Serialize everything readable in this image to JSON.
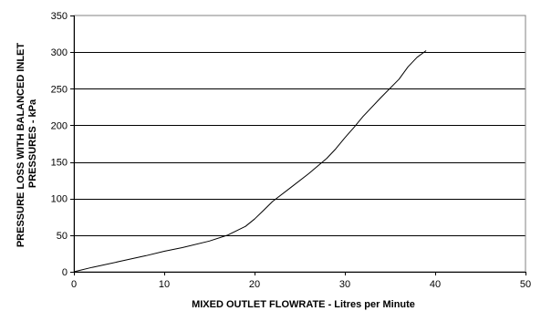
{
  "chart_data": {
    "type": "line",
    "title": "",
    "xlabel": "MIXED OUTLET FLOWRATE - Litres per Minute",
    "ylabel": [
      "PRESSURE LOSS WITH BALANCED INLET",
      "PRESSURES - kPa"
    ],
    "xlim": [
      0,
      50
    ],
    "ylim": [
      0,
      350
    ],
    "xticks": [
      "0",
      "10",
      "20",
      "30",
      "40",
      "50"
    ],
    "yticks": [
      "0",
      "50",
      "100",
      "150",
      "200",
      "250",
      "300",
      "350"
    ],
    "grid": "horizontal",
    "legend": "none",
    "series": [
      {
        "color": "#000000",
        "x": [
          0,
          2,
          5,
          8,
          10,
          12,
          15,
          17,
          19,
          20,
          21,
          22,
          24,
          26,
          28,
          29,
          30,
          31,
          32,
          34,
          36,
          37,
          38,
          39
        ],
        "y": [
          0,
          6,
          14,
          22,
          28,
          33,
          42,
          50,
          62,
          72,
          84,
          96,
          115,
          134,
          155,
          168,
          183,
          197,
          212,
          238,
          263,
          280,
          293,
          302
        ]
      }
    ]
  }
}
